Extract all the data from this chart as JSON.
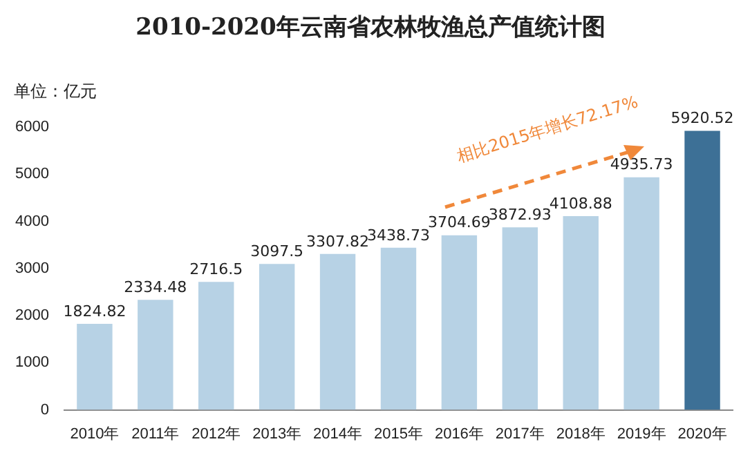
{
  "chart_data": {
    "type": "bar",
    "title": "2010-2020年云南省农林牧渔总产值统计图",
    "ylabel": "单位：亿元",
    "categories": [
      "2010年",
      "2011年",
      "2012年",
      "2013年",
      "2014年",
      "2015年",
      "2016年",
      "2017年",
      "2018年",
      "2019年",
      "2020年"
    ],
    "values": [
      1824.82,
      2334.48,
      2716.5,
      3097.5,
      3307.82,
      3438.73,
      3704.69,
      3872.93,
      4108.88,
      4935.73,
      5920.52
    ],
    "value_labels": [
      "1824.82",
      "2334.48",
      "2716.5",
      "3097.5",
      "3307.82",
      "3438.73",
      "3704.69",
      "3872.93",
      "4108.88",
      "4935.73",
      "5920.52"
    ],
    "colors": [
      "#b7d2e5",
      "#b7d2e5",
      "#b7d2e5",
      "#b7d2e5",
      "#b7d2e5",
      "#b7d2e5",
      "#b7d2e5",
      "#b7d2e5",
      "#b7d2e5",
      "#b7d2e5",
      "#3d7096"
    ],
    "ylim": [
      0,
      6000
    ],
    "yticks": [
      0,
      1000,
      2000,
      3000,
      4000,
      5000,
      6000
    ],
    "grid": false,
    "legend": false,
    "annotations": [
      "相比2015年增长72.17%"
    ]
  }
}
